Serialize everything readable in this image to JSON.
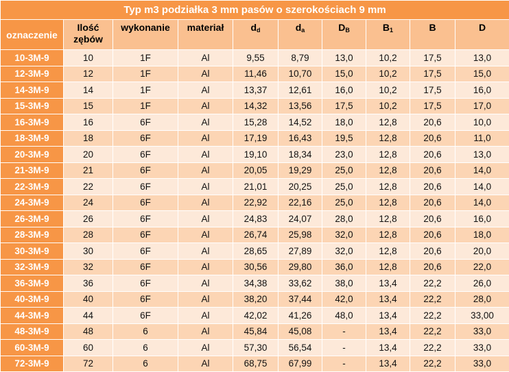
{
  "title": "Typ m3 podziałka 3 mm pasów o szerokościach 9 mm",
  "headers": [
    {
      "text": "oznaczenie",
      "sub": ""
    },
    {
      "text": "Ilość zębów",
      "sub": ""
    },
    {
      "text": "wykonanie",
      "sub": ""
    },
    {
      "text": "materiał",
      "sub": ""
    },
    {
      "text": "d",
      "sub": "d"
    },
    {
      "text": "d",
      "sub": "a"
    },
    {
      "text": "D",
      "sub": "B"
    },
    {
      "text": "B",
      "sub": "1"
    },
    {
      "text": "B",
      "sub": ""
    },
    {
      "text": "D",
      "sub": ""
    }
  ],
  "rows": [
    [
      "10-3M-9",
      "10",
      "1F",
      "Al",
      "9,55",
      "8,79",
      "13,0",
      "10,2",
      "17,5",
      "13,0"
    ],
    [
      "12-3M-9",
      "12",
      "1F",
      "Al",
      "11,46",
      "10,70",
      "15,0",
      "10,2",
      "17,5",
      "15,0"
    ],
    [
      "14-3M-9",
      "14",
      "1F",
      "Al",
      "13,37",
      "12,61",
      "16,0",
      "10,2",
      "17,5",
      "16,0"
    ],
    [
      "15-3M-9",
      "15",
      "1F",
      "Al",
      "14,32",
      "13,56",
      "17,5",
      "10,2",
      "17,5",
      "17,0"
    ],
    [
      "16-3M-9",
      "16",
      "6F",
      "Al",
      "15,28",
      "14,52",
      "18,0",
      "12,8",
      "20,6",
      "10,0"
    ],
    [
      "18-3M-9",
      "18",
      "6F",
      "Al",
      "17,19",
      "16,43",
      "19,5",
      "12,8",
      "20,6",
      "11,0"
    ],
    [
      "20-3M-9",
      "20",
      "6F",
      "Al",
      "19,10",
      "18,34",
      "23,0",
      "12,8",
      "20,6",
      "13,0"
    ],
    [
      "21-3M-9",
      "21",
      "6F",
      "Al",
      "20,05",
      "19,29",
      "25,0",
      "12,8",
      "20,6",
      "14,0"
    ],
    [
      "22-3M-9",
      "22",
      "6F",
      "Al",
      "21,01",
      "20,25",
      "25,0",
      "12,8",
      "20,6",
      "14,0"
    ],
    [
      "24-3M-9",
      "24",
      "6F",
      "Al",
      "22,92",
      "22,16",
      "25,0",
      "12,8",
      "20,6",
      "14,0"
    ],
    [
      "26-3M-9",
      "26",
      "6F",
      "Al",
      "24,83",
      "24,07",
      "28,0",
      "12,8",
      "20,6",
      "16,0"
    ],
    [
      "28-3M-9",
      "28",
      "6F",
      "Al",
      "26,74",
      "25,98",
      "32,0",
      "12,8",
      "20,6",
      "18,0"
    ],
    [
      "30-3M-9",
      "30",
      "6F",
      "Al",
      "28,65",
      "27,89",
      "32,0",
      "12,8",
      "20,6",
      "20,0"
    ],
    [
      "32-3M-9",
      "32",
      "6F",
      "Al",
      "30,56",
      "29,80",
      "36,0",
      "12,8",
      "20,6",
      "22,0"
    ],
    [
      "36-3M-9",
      "36",
      "6F",
      "Al",
      "34,38",
      "33,62",
      "38,0",
      "13,4",
      "22,2",
      "26,0"
    ],
    [
      "40-3M-9",
      "40",
      "6F",
      "Al",
      "38,20",
      "37,44",
      "42,0",
      "13,4",
      "22,2",
      "28,0"
    ],
    [
      "44-3M-9",
      "44",
      "6F",
      "Al",
      "42,02",
      "41,26",
      "48,0",
      "13,4",
      "22,2",
      "33,00"
    ],
    [
      "48-3M-9",
      "48",
      "6",
      "Al",
      "45,84",
      "45,08",
      "-",
      "13,4",
      "22,2",
      "33,0"
    ],
    [
      "60-3M-9",
      "60",
      "6",
      "Al",
      "57,30",
      "56,54",
      "-",
      "13,4",
      "22,2",
      "33,0"
    ],
    [
      "72-3M-9",
      "72",
      "6",
      "Al",
      "68,75",
      "67,99",
      "-",
      "13,4",
      "22,2",
      "33,0"
    ]
  ],
  "colors": {
    "accent_orange": "#f79646",
    "header_peach": "#fac090",
    "row_light": "#fde9d9",
    "row_dark": "#fcd5b4"
  }
}
